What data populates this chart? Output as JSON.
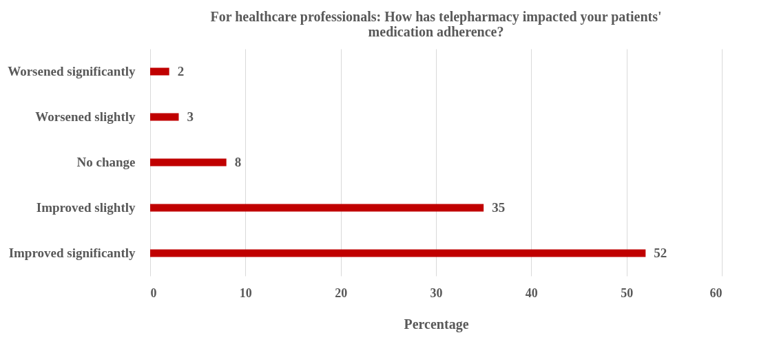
{
  "chart_data": {
    "type": "bar",
    "orientation": "horizontal",
    "title": "For healthcare professionals: How has telepharmacy impacted your patients' medication adherence?",
    "xlabel": "Percentage",
    "categories": [
      "Worsened significantly",
      "Worsened slightly",
      "No change",
      "Improved slightly",
      "Improved significantly"
    ],
    "values": [
      2,
      3,
      8,
      35,
      52
    ],
    "color": "#c00000",
    "xlim": [
      0,
      60
    ],
    "xticks": [
      0,
      10,
      20,
      30,
      40,
      50,
      60
    ],
    "grid": "x",
    "data_labels": true
  }
}
